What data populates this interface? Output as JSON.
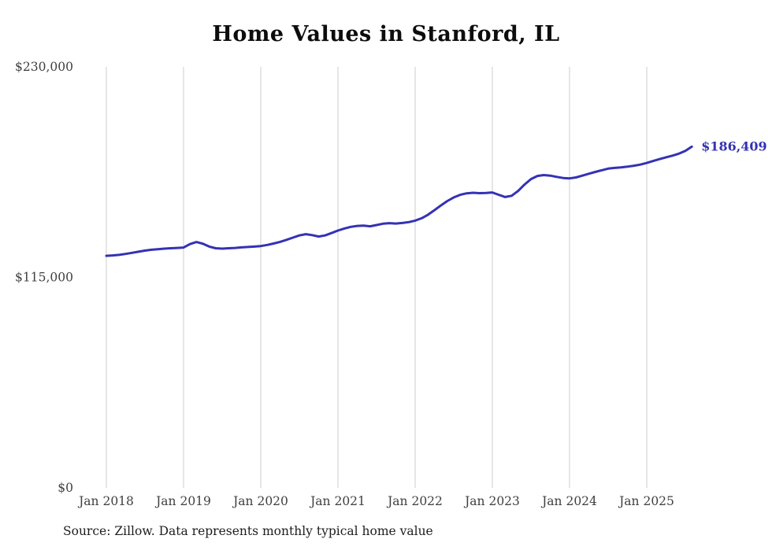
{
  "chart_data": {
    "type": "line",
    "title": "Home Values in Stanford, IL",
    "source": "Source: Zillow. Data represents monthly typical home value",
    "end_label": "$186,409",
    "latest_value": 186409,
    "line_color": "#3432b4",
    "grid_color": "#cccccc",
    "axis_text_color": "#3f3f3f",
    "grid": true,
    "legend_position": "none",
    "xlabel": "",
    "ylabel": "",
    "ylim": [
      0,
      230000
    ],
    "ytick_values": [
      0,
      115000,
      230000
    ],
    "ytick_labels": [
      "$0",
      "$115,000",
      "$230,000"
    ],
    "xtick_month_indices": [
      0,
      12,
      24,
      36,
      48,
      60,
      72,
      84
    ],
    "xtick_labels": [
      "Jan 2018",
      "Jan 2019",
      "Jan 2020",
      "Jan 2021",
      "Jan 2022",
      "Jan 2023",
      "Jan 2024",
      "Jan 2025"
    ],
    "x": [
      "2018-01",
      "2018-02",
      "2018-03",
      "2018-04",
      "2018-05",
      "2018-06",
      "2018-07",
      "2018-08",
      "2018-09",
      "2018-10",
      "2018-11",
      "2018-12",
      "2019-01",
      "2019-02",
      "2019-03",
      "2019-04",
      "2019-05",
      "2019-06",
      "2019-07",
      "2019-08",
      "2019-09",
      "2019-10",
      "2019-11",
      "2019-12",
      "2020-01",
      "2020-02",
      "2020-03",
      "2020-04",
      "2020-05",
      "2020-06",
      "2020-07",
      "2020-08",
      "2020-09",
      "2020-10",
      "2020-11",
      "2020-12",
      "2021-01",
      "2021-02",
      "2021-03",
      "2021-04",
      "2021-05",
      "2021-06",
      "2021-07",
      "2021-08",
      "2021-09",
      "2021-10",
      "2021-11",
      "2021-12",
      "2022-01",
      "2022-02",
      "2022-03",
      "2022-04",
      "2022-05",
      "2022-06",
      "2022-07",
      "2022-08",
      "2022-09",
      "2022-10",
      "2022-11",
      "2022-12",
      "2023-01",
      "2023-02",
      "2023-03",
      "2023-04",
      "2023-05",
      "2023-06",
      "2023-07",
      "2023-08",
      "2023-09",
      "2023-10",
      "2023-11",
      "2023-12",
      "2024-01",
      "2024-02",
      "2024-03",
      "2024-04",
      "2024-05",
      "2024-06",
      "2024-07",
      "2024-08",
      "2024-09",
      "2024-10",
      "2024-11",
      "2024-12",
      "2025-01",
      "2025-02",
      "2025-03",
      "2025-04",
      "2025-05",
      "2025-06",
      "2025-07",
      "2025-08"
    ],
    "values": [
      126800,
      127000,
      127300,
      127800,
      128400,
      129000,
      129600,
      130100,
      130400,
      130700,
      130900,
      131100,
      131300,
      133200,
      134300,
      133400,
      131800,
      130900,
      130700,
      130900,
      131100,
      131400,
      131600,
      131800,
      132100,
      132700,
      133500,
      134400,
      135500,
      136700,
      137900,
      138600,
      138100,
      137300,
      137900,
      139200,
      140600,
      141700,
      142600,
      143100,
      143300,
      142900,
      143600,
      144300,
      144600,
      144400,
      144700,
      145200,
      146000,
      147300,
      149200,
      151700,
      154300,
      156700,
      158700,
      160100,
      160900,
      161200,
      161000,
      161100,
      161400,
      160100,
      158900,
      159600,
      162200,
      165700,
      168700,
      170400,
      170900,
      170600,
      169900,
      169300,
      169100,
      169600,
      170600,
      171600,
      172600,
      173500,
      174400,
      174800,
      175100,
      175500,
      176000,
      176600,
      177500,
      178600,
      179600,
      180600,
      181500,
      182600,
      184100,
      186409
    ]
  }
}
